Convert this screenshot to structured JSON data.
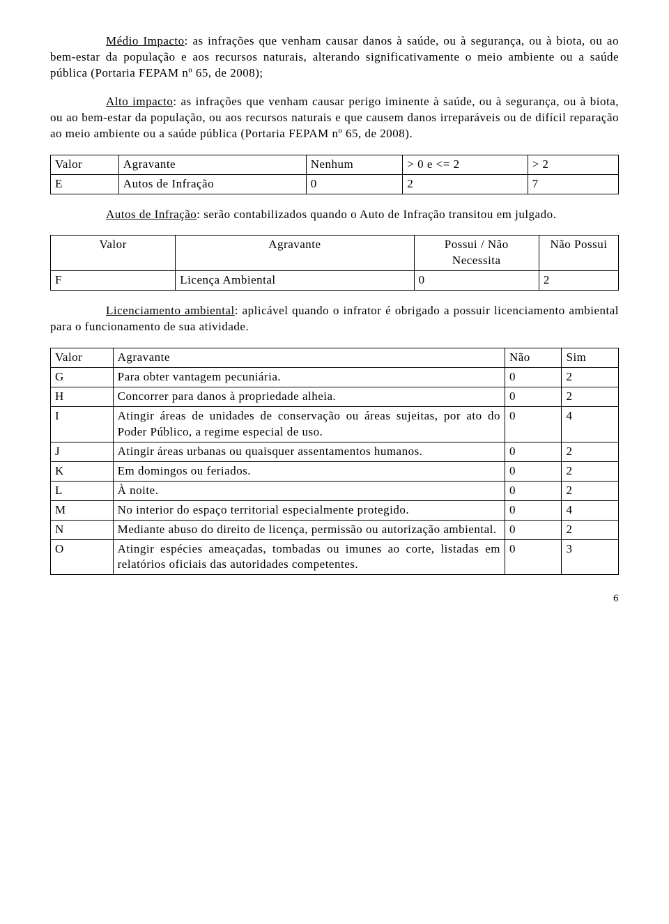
{
  "para1": {
    "lead_underline": "Médio Impacto",
    "rest": ": as infrações que venham causar danos à saúde, ou à segurança, ou à biota, ou ao bem-estar da população e aos recursos naturais, alterando significativamente o meio ambiente ou a saúde pública (Portaria FEPAM nº 65, de 2008);"
  },
  "para2": {
    "lead_underline": "Alto impacto",
    "rest": ": as infrações que venham causar perigo iminente à saúde, ou à segurança, ou à biota, ou ao bem-estar da população, ou aos recursos naturais e que causem danos irreparáveis ou de difícil reparação ao meio ambiente ou a saúde pública (Portaria FEPAM nº 65, de 2008)."
  },
  "tableE": {
    "header": [
      "Valor",
      "Agravante",
      "Nenhum",
      "> 0 e <= 2",
      "> 2"
    ],
    "row": [
      "E",
      "Autos de Infração",
      "0",
      "2",
      "7"
    ]
  },
  "para3": {
    "lead_underline": "Autos de Infração",
    "rest": ": serão contabilizados quando o Auto de Infração transitou em julgado."
  },
  "tableF": {
    "header": [
      "Valor",
      "Agravante",
      "Possui / Não Necessita",
      "Não Possui"
    ],
    "row": [
      "F",
      "Licença Ambiental",
      "0",
      "2"
    ]
  },
  "para4": {
    "lead_underline": "Licenciamento ambiental",
    "rest": ": aplicável quando o infrator é obrigado a possuir licenciamento ambiental para o funcionamento de sua atividade."
  },
  "tableG": {
    "header": [
      "Valor",
      "Agravante",
      "Não",
      "Sim"
    ],
    "rows": [
      [
        "G",
        "Para obter vantagem pecuniária.",
        "0",
        "2"
      ],
      [
        "H",
        "Concorrer para danos à propriedade alheia.",
        "0",
        "2"
      ],
      [
        "I",
        "Atingir áreas de unidades de conservação ou áreas sujeitas, por ato do Poder Público, a regime especial de uso.",
        "0",
        "4"
      ],
      [
        "J",
        "Atingir áreas urbanas ou quaisquer assentamentos humanos.",
        "0",
        "2"
      ],
      [
        "K",
        "Em domingos ou feriados.",
        "0",
        "2"
      ],
      [
        "L",
        "À noite.",
        "0",
        "2"
      ],
      [
        "M",
        "No interior do espaço territorial especialmente protegido.",
        "0",
        "4"
      ],
      [
        "N",
        "Mediante abuso do direito de licença, permissão ou autorização ambiental.",
        "0",
        "2"
      ],
      [
        "O",
        "Atingir espécies ameaçadas, tombadas ou imunes ao corte, listadas em relatórios oficiais das autoridades competentes.",
        "0",
        "3"
      ]
    ]
  },
  "page_number": "6"
}
